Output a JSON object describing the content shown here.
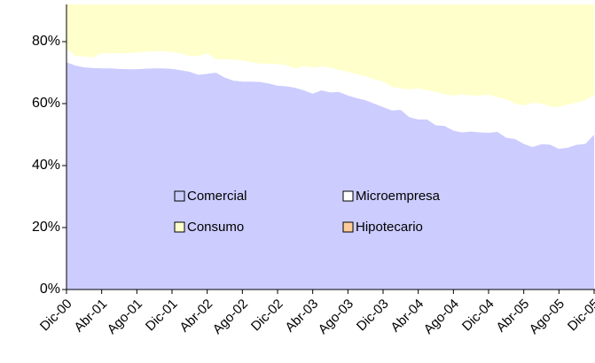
{
  "chart_data": {
    "type": "stacked_area",
    "categories": [
      "Dic-00",
      null,
      null,
      null,
      "Abr-01",
      null,
      null,
      null,
      "Ago-01",
      null,
      null,
      null,
      "Dic-01",
      null,
      null,
      null,
      "Abr-02",
      null,
      null,
      null,
      "Ago-02",
      null,
      null,
      null,
      "Dic-02",
      null,
      null,
      null,
      "Abr-03",
      null,
      null,
      null,
      "Ago-03",
      null,
      null,
      null,
      "Dic-03",
      null,
      null,
      null,
      "Abr-04",
      null,
      null,
      null,
      "Ago-04",
      null,
      null,
      null,
      "Dic-04",
      null,
      null,
      null,
      "Abr-05",
      null,
      null,
      null,
      "Ago-05",
      null,
      null,
      null,
      "Dic-05"
    ],
    "series": [
      {
        "name": "Comercial",
        "color": "#ccccff",
        "values": [
          73.4,
          72.3,
          71.7,
          71.5,
          71.4,
          71.4,
          71.2,
          71.1,
          71.1,
          71.3,
          71.4,
          71.4,
          71.2,
          70.8,
          70.3,
          69.3,
          69.6,
          70.0,
          68.4,
          67.4,
          67.1,
          67.1,
          67.0,
          66.5,
          65.8,
          65.6,
          65.1,
          64.3,
          63.2,
          64.3,
          63.6,
          63.8,
          62.6,
          61.8,
          61.1,
          60.0,
          58.9,
          57.8,
          58.0,
          55.6,
          54.9,
          54.9,
          53.0,
          52.8,
          51.3,
          50.7,
          51.0,
          50.7,
          50.6,
          50.9,
          49.0,
          48.6,
          47.0,
          46.0,
          46.9,
          46.8,
          45.4,
          45.8,
          46.7,
          47.0,
          50.0
        ]
      },
      {
        "name": "Microempresa",
        "color": "#ffffff",
        "values": [
          4.3,
          3.1,
          3.5,
          3.4,
          4.9,
          4.9,
          5.1,
          5.2,
          5.3,
          5.5,
          5.5,
          5.5,
          5.4,
          5.4,
          5.1,
          6.0,
          6.7,
          4.3,
          5.9,
          6.8,
          6.8,
          6.3,
          5.9,
          6.4,
          7.0,
          6.8,
          6.3,
          7.8,
          8.4,
          7.7,
          8.0,
          7.1,
          7.7,
          7.6,
          7.8,
          7.8,
          8.2,
          7.6,
          6.9,
          9.0,
          10.0,
          9.4,
          10.8,
          10.2,
          11.3,
          12.3,
          11.6,
          11.9,
          12.3,
          11.1,
          12.4,
          11.4,
          12.4,
          14.3,
          13.1,
          12.3,
          13.5,
          13.9,
          13.6,
          14.0,
          12.9
        ]
      },
      {
        "name": "Consumo",
        "color": "#ffffcc",
        "values": [
          14.3,
          16.6,
          16.8,
          17.1,
          15.7,
          15.7,
          15.7,
          15.7,
          15.6,
          15.2,
          15.1,
          15.1,
          15.4,
          15.8,
          16.6,
          16.7,
          15.7,
          17.7,
          17.7,
          17.8,
          18.1,
          18.6,
          19.1,
          19.1,
          19.2,
          19.6,
          20.6,
          19.9,
          20.4,
          20.0,
          20.4,
          21.1,
          21.7,
          22.6,
          23.1,
          24.2,
          24.9,
          26.6,
          27.1,
          27.4,
          27.1,
          27.7,
          28.2,
          29.0,
          29.4,
          29.0,
          29.4,
          29.4,
          29.1,
          30.0,
          30.6,
          32.0,
          32.6,
          31.7,
          32.0,
          32.9,
          33.1,
          32.3,
          31.7,
          31.0,
          29.1
        ]
      },
      {
        "name": "Hipotecario",
        "color": "#ffcc99",
        "values": [
          8,
          8,
          8,
          8,
          8,
          8,
          8,
          8,
          8,
          8,
          8,
          8,
          8,
          8,
          8,
          8,
          8,
          8,
          8,
          8,
          8,
          8,
          8,
          8,
          8,
          8,
          8,
          8,
          8,
          8,
          8,
          8,
          8,
          8,
          8,
          8,
          8,
          8,
          8,
          8,
          8,
          8,
          8,
          8,
          8,
          8,
          8,
          8,
          8,
          8,
          8,
          8,
          8,
          8,
          8,
          8,
          8,
          8,
          8,
          8,
          8
        ]
      }
    ],
    "ylim": [
      0,
      92
    ],
    "yticks": [
      {
        "value": 0,
        "label": "0%"
      },
      {
        "value": 20,
        "label": "20%"
      },
      {
        "value": 40,
        "label": "40%"
      },
      {
        "value": 60,
        "label": "60%"
      },
      {
        "value": 80,
        "label": "80%"
      }
    ],
    "legend": "center"
  }
}
